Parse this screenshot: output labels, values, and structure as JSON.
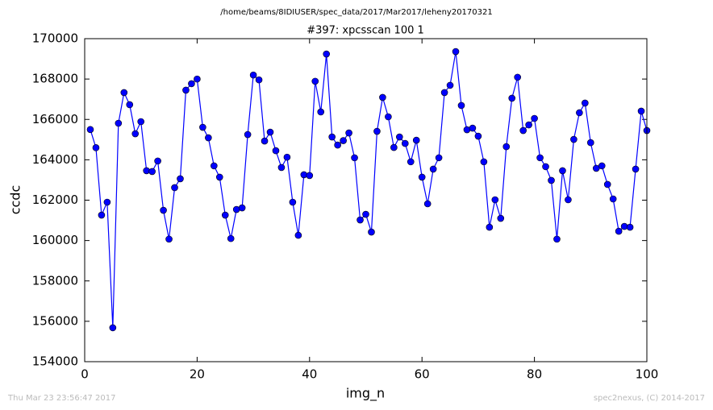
{
  "chart_data": {
    "type": "line",
    "suptitle": "/home/beams/8IDIUSER/spec_data/2017/Mar2017/leheny20170321",
    "title": "#397: xpcsscan 100 1",
    "xlabel": "img_n",
    "ylabel": "ccdc",
    "x": [
      1,
      2,
      3,
      4,
      5,
      6,
      7,
      8,
      9,
      10,
      11,
      12,
      13,
      14,
      15,
      16,
      17,
      18,
      19,
      20,
      21,
      22,
      23,
      24,
      25,
      26,
      27,
      28,
      29,
      30,
      31,
      32,
      33,
      34,
      35,
      36,
      37,
      38,
      39,
      40,
      41,
      42,
      43,
      44,
      45,
      46,
      47,
      48,
      49,
      50,
      51,
      52,
      53,
      54,
      55,
      56,
      57,
      58,
      59,
      60,
      61,
      62,
      63,
      64,
      65,
      66,
      67,
      68,
      69,
      70,
      71,
      72,
      73,
      74,
      75,
      76,
      77,
      78,
      79,
      80,
      81,
      82,
      83,
      84,
      85,
      86,
      87,
      88,
      89,
      90,
      91,
      92,
      93,
      94,
      95,
      96,
      97,
      98,
      99,
      100
    ],
    "values": [
      165500,
      164600,
      161260,
      161900,
      155680,
      165810,
      167330,
      166730,
      165290,
      165890,
      163460,
      163420,
      163940,
      161500,
      160070,
      162620,
      163060,
      167450,
      167770,
      168000,
      165610,
      165090,
      163700,
      163140,
      161260,
      160100,
      161540,
      161620,
      165250,
      168200,
      167960,
      164930,
      165370,
      164450,
      163620,
      164130,
      161900,
      160260,
      163260,
      163220,
      167890,
      166370,
      169240,
      165130,
      164730,
      164950,
      165330,
      164100,
      161020,
      161300,
      160420,
      165410,
      167090,
      166130,
      164610,
      165130,
      164810,
      163900,
      164970,
      163140,
      161820,
      163540,
      164100,
      167330,
      167690,
      169360,
      166690,
      165490,
      165570,
      165170,
      163900,
      160660,
      162020,
      161100,
      164650,
      167050,
      168090,
      165450,
      165730,
      166050,
      164100,
      163660,
      162980,
      160070,
      163460,
      162020,
      165010,
      166330,
      166810,
      164850,
      163580,
      163700,
      162780,
      162060,
      160460,
      160700,
      160660,
      163540,
      166410,
      165450
    ],
    "color": "#0000ff",
    "xlim": [
      0,
      100
    ],
    "ylim": [
      154000,
      170000
    ],
    "xticks": [
      0,
      20,
      40,
      60,
      80,
      100
    ],
    "yticks": [
      154000,
      156000,
      158000,
      160000,
      162000,
      164000,
      166000,
      168000,
      170000
    ]
  },
  "footer": {
    "left": "Thu Mar 23 23:56:47 2017",
    "right": "spec2nexus, (C) 2014-2017"
  }
}
